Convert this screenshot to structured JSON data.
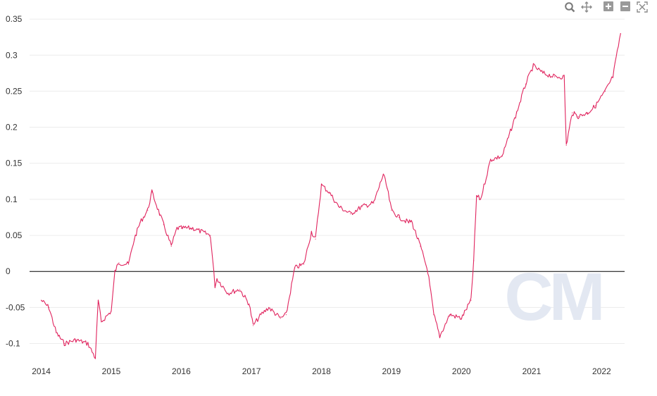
{
  "toolbar": {
    "icons": [
      "zoom-icon",
      "pan-icon",
      "zoom-in-icon",
      "zoom-out-icon",
      "autoscale-icon"
    ],
    "color": "#9a9a9a"
  },
  "watermark": {
    "text": "CM",
    "color": "#e3e8f2"
  },
  "chart_data": {
    "type": "line",
    "title": "",
    "xlabel": "",
    "ylabel": "",
    "series_color": "#e0245e",
    "zero_line_color": "#000000",
    "grid": true,
    "xlim": [
      "2013-11-01",
      "2022-05-01"
    ],
    "ylim": [
      -0.12,
      0.355
    ],
    "x_ticks": [
      "2014",
      "2015",
      "2016",
      "2017",
      "2018",
      "2019",
      "2020",
      "2021",
      "2022"
    ],
    "y_ticks": [
      "-0.1",
      "-0.05",
      "0",
      "0.05",
      "0.1",
      "0.15",
      "0.2",
      "0.25",
      "0.3",
      "0.35"
    ],
    "series": [
      {
        "x": [
          "2014-01-01",
          "2014-02-10",
          "2014-03-20",
          "2014-05-01",
          "2014-07-01",
          "2014-09-01",
          "2014-10-10",
          "2014-10-25",
          "2014-11-10",
          "2015-01-01",
          "2015-01-20",
          "2015-02-10",
          "2015-04-01",
          "2015-05-01",
          "2015-06-01",
          "2015-07-10",
          "2015-08-01",
          "2015-09-10",
          "2015-10-01",
          "2015-11-10",
          "2015-12-10",
          "2016-01-01",
          "2016-03-01",
          "2016-06-01",
          "2016-06-25",
          "2016-07-05",
          "2016-09-01",
          "2016-11-01",
          "2016-12-20",
          "2017-01-10",
          "2017-02-20",
          "2017-04-01",
          "2017-06-01",
          "2017-07-01",
          "2017-08-15",
          "2017-10-01",
          "2017-11-10",
          "2017-12-01",
          "2018-01-01",
          "2018-02-10",
          "2018-04-01",
          "2018-06-01",
          "2018-08-01",
          "2018-10-01",
          "2018-11-20",
          "2018-12-10",
          "2019-01-01",
          "2019-02-10",
          "2019-04-01",
          "2019-04-15",
          "2019-06-01",
          "2019-07-10",
          "2019-08-10",
          "2019-09-10",
          "2019-11-01",
          "2020-01-01",
          "2020-02-20",
          "2020-03-05",
          "2020-03-20",
          "2020-04-10",
          "2020-06-01",
          "2020-08-01",
          "2020-10-15",
          "2020-12-01",
          "2021-01-10",
          "2021-03-01",
          "2021-05-01",
          "2021-06-20",
          "2021-07-01",
          "2021-08-01",
          "2021-09-01",
          "2021-10-20",
          "2021-12-01",
          "2022-01-20",
          "2022-03-01",
          "2022-04-10"
        ],
        "y": [
          -0.04,
          -0.05,
          -0.085,
          -0.1,
          -0.095,
          -0.1,
          -0.12,
          -0.04,
          -0.07,
          -0.055,
          0.0,
          0.012,
          0.01,
          0.045,
          0.068,
          0.085,
          0.11,
          0.08,
          0.065,
          0.035,
          0.06,
          0.06,
          0.06,
          0.05,
          -0.02,
          -0.01,
          -0.03,
          -0.025,
          -0.045,
          -0.075,
          -0.06,
          -0.05,
          -0.065,
          -0.06,
          0.005,
          0.01,
          0.055,
          0.045,
          0.12,
          0.11,
          0.09,
          0.08,
          0.09,
          0.095,
          0.135,
          0.115,
          0.085,
          0.075,
          0.068,
          0.07,
          0.035,
          0.0,
          -0.06,
          -0.09,
          -0.06,
          -0.065,
          -0.04,
          0.015,
          0.105,
          0.1,
          0.155,
          0.16,
          0.22,
          0.26,
          0.285,
          0.275,
          0.27,
          0.27,
          0.175,
          0.22,
          0.215,
          0.22,
          0.23,
          0.25,
          0.27,
          0.33
        ]
      }
    ]
  }
}
